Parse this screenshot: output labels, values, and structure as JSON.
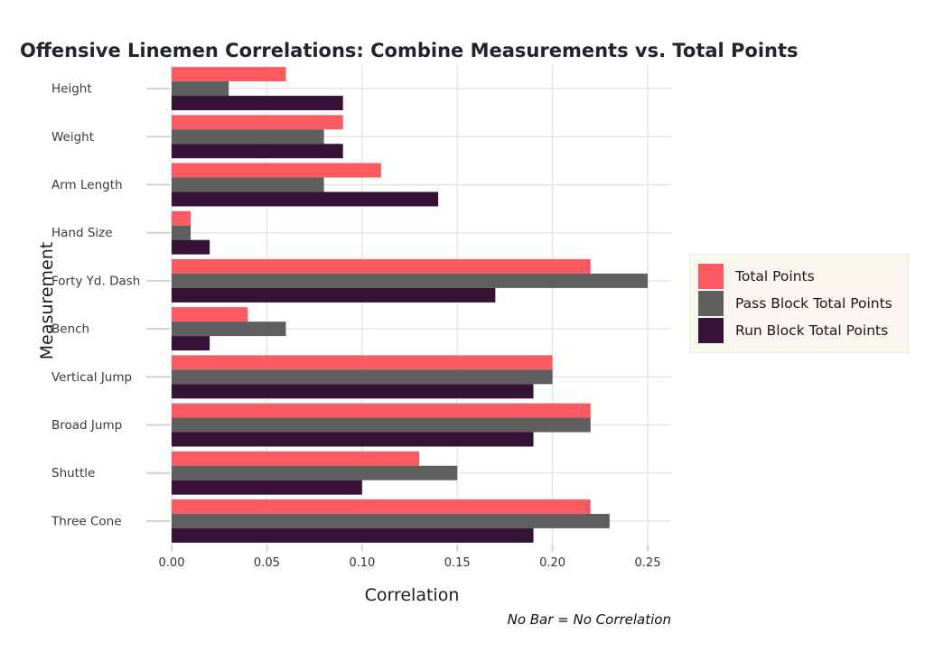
{
  "chart_data": {
    "type": "bar",
    "orientation": "horizontal",
    "title": "Offensive Linemen Correlations: Combine Measurements vs. Total Points",
    "xlabel": "Correlation",
    "ylabel": "Measurement",
    "note": "No Bar = No Correlation",
    "categories": [
      "Height",
      "Weight",
      "Arm Length",
      "Hand Size",
      "Forty Yd. Dash",
      "Bench",
      "Vertical Jump",
      "Broad Jump",
      "Shuttle",
      "Three Cone"
    ],
    "series": [
      {
        "name": "Total Points",
        "color": "#FB5A62",
        "values": [
          0.06,
          0.09,
          0.11,
          0.01,
          0.22,
          0.04,
          0.2,
          0.22,
          0.13,
          0.22
        ]
      },
      {
        "name": "Pass Block Total Points",
        "color": "#5F5F5F",
        "values": [
          0.03,
          0.08,
          0.08,
          0.01,
          0.25,
          0.06,
          0.2,
          0.22,
          0.15,
          0.23
        ]
      },
      {
        "name": "Run Block Total Points",
        "color": "#371237",
        "values": [
          0.09,
          0.09,
          0.14,
          0.02,
          0.17,
          0.02,
          0.19,
          0.19,
          0.1,
          0.19
        ]
      }
    ],
    "x_ticks": [
      "0.00",
      "0.05",
      "0.10",
      "0.15",
      "0.20",
      "0.25"
    ],
    "xlim": [
      0,
      0.2623
    ],
    "grid": true,
    "legend_position": "right",
    "colors": {
      "gridline": "#E4E4E4",
      "tick_mark": "#D3D3D3",
      "axis_text": "#333333",
      "category_text": "#3A3A3A",
      "legend_bg": "#F9F6EF"
    }
  }
}
